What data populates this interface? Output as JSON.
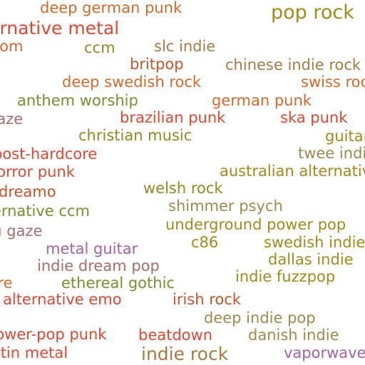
{
  "colors": {
    "red": "#d94a34",
    "orange": "#d16a2e",
    "olive": "#8f8a26",
    "olive_green": "#7c8c33",
    "brown": "#a57a45",
    "khaki": "#9c8a4f",
    "mauve": "#a66e6e",
    "purple": "#a461a3",
    "dark_olive": "#6f7a30"
  },
  "tags": [
    {
      "label": "deep german punk",
      "color": "#d16a2e"
    },
    {
      "label": "pop rock",
      "color": "#a08a1e"
    },
    {
      "label": "alternative metal",
      "color": "#d94a34"
    },
    {
      "label": "ccom",
      "color": "#d16a2e"
    },
    {
      "label": "ccm",
      "color": "#8f8a26"
    },
    {
      "label": "slc indie",
      "color": "#a57a45"
    },
    {
      "label": "britpop",
      "color": "#c0562b"
    },
    {
      "label": "chinese indie rock",
      "color": "#a57a45"
    },
    {
      "label": "deep swedish rock",
      "color": "#d16a2e"
    },
    {
      "label": "swiss rock",
      "color": "#d16a2e"
    },
    {
      "label": "anthem worship",
      "color": "#7c8c33"
    },
    {
      "label": "german punk",
      "color": "#d16a2e"
    },
    {
      "label": "gaze",
      "color": "#a66e6e"
    },
    {
      "label": "brazilian punk",
      "color": "#d94a34"
    },
    {
      "label": "ska punk",
      "color": "#d94a34"
    },
    {
      "label": "christian music",
      "color": "#8f8a26"
    },
    {
      "label": "guitar",
      "color": "#a08a1e"
    },
    {
      "label": "post-hardcore",
      "color": "#d94a34"
    },
    {
      "label": "twee indie",
      "color": "#9c8a4f"
    },
    {
      "label": "horror punk",
      "color": "#d94a34"
    },
    {
      "label": "australian alternative",
      "color": "#a08a1e"
    },
    {
      "label": "dreamo",
      "color": "#c0562b"
    },
    {
      "label": "welsh rock",
      "color": "#8f8a26"
    },
    {
      "label": "shimmer psych",
      "color": "#9c8a4f"
    },
    {
      "label": "alternative ccm",
      "color": "#7c8c33"
    },
    {
      "label": "underground power pop",
      "color": "#a08a1e"
    },
    {
      "label": "nu gaze",
      "color": "#a66e6e"
    },
    {
      "label": "c86",
      "color": "#a08a1e"
    },
    {
      "label": "swedish indie",
      "color": "#a08a1e"
    },
    {
      "label": "metal guitar",
      "color": "#a461a3"
    },
    {
      "label": "dallas indie",
      "color": "#a08a1e"
    },
    {
      "label": "indie dream pop",
      "color": "#a66e6e"
    },
    {
      "label": "indie fuzzpop",
      "color": "#a08a1e"
    },
    {
      "label": "ethereal gothic",
      "color": "#7c8c33"
    },
    {
      "label": "core",
      "color": "#d16a2e"
    },
    {
      "label": "alternative emo",
      "color": "#d94a34"
    },
    {
      "label": "irish rock",
      "color": "#c0562b"
    },
    {
      "label": "deep indie pop",
      "color": "#9c8a4f"
    },
    {
      "label": "power-pop punk",
      "color": "#d94a34"
    },
    {
      "label": "beatdown",
      "color": "#d94a34"
    },
    {
      "label": "danish indie",
      "color": "#9c8a4f"
    },
    {
      "label": "latin metal",
      "color": "#d94a34"
    },
    {
      "label": "indie rock",
      "color": "#a57a45"
    },
    {
      "label": "vaporwave",
      "color": "#a461a3"
    }
  ]
}
